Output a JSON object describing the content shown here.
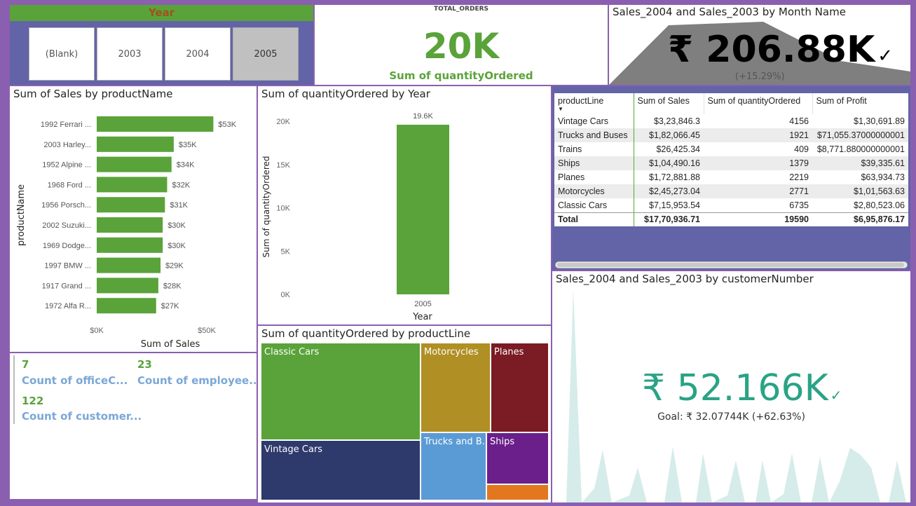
{
  "slicer": {
    "title": "Year",
    "options": [
      "(Blank)",
      "2003",
      "2004",
      "2005"
    ],
    "selected": "2005"
  },
  "total_orders": {
    "title": "TOTAL_ORDERS",
    "value": "20K",
    "label": "Sum of quantityOrdered"
  },
  "kpi_month": {
    "title": "Sales_2004 and Sales_2003 by Month Name",
    "value": "₹ 206.88K",
    "check": "✓",
    "change": "(+15.29%)"
  },
  "bar_product": {
    "title": "Sum of Sales by productName"
  },
  "counts": [
    {
      "value": "7",
      "label": "Count of officeC..."
    },
    {
      "value": "23",
      "label": "Count of employee..."
    },
    {
      "value": "122",
      "label": "Count of customer..."
    }
  ],
  "col_year": {
    "title": "Sum of quantityOrdered by Year"
  },
  "treemap": {
    "title": "Sum of quantityOrdered by productLine",
    "items": [
      {
        "label": "Classic Cars",
        "color": "#5aa33a"
      },
      {
        "label": "Vintage Cars",
        "color": "#2e3a6c"
      },
      {
        "label": "Motorcycles",
        "color": "#b08f24"
      },
      {
        "label": "Planes",
        "color": "#7b1b24"
      },
      {
        "label": "Trucks and B...",
        "color": "#5b9bd5"
      },
      {
        "label": "Ships",
        "color": "#6a1f8a"
      },
      {
        "label": "",
        "color": "#e3771f"
      }
    ]
  },
  "table": {
    "headers": [
      "productLine",
      "Sum of Sales",
      "Sum of quantityOrdered",
      "Sum of Profit"
    ],
    "rows": [
      [
        "Vintage Cars",
        "$3,23,846.3",
        "4156",
        "$1,30,691.89"
      ],
      [
        "Trucks and Buses",
        "$1,82,066.45",
        "1921",
        "$71,055.37000000001"
      ],
      [
        "Trains",
        "$26,425.34",
        "409",
        "$8,771.880000000001"
      ],
      [
        "Ships",
        "$1,04,490.16",
        "1379",
        "$39,335.61"
      ],
      [
        "Planes",
        "$1,72,881.88",
        "2219",
        "$63,934.73"
      ],
      [
        "Motorcycles",
        "$2,45,273.04",
        "2771",
        "$1,01,563.63"
      ],
      [
        "Classic Cars",
        "$7,15,953.54",
        "6735",
        "$2,80,523.06"
      ]
    ],
    "total": [
      "Total",
      "$17,70,936.71",
      "19590",
      "$6,95,876.17"
    ]
  },
  "kpi_customer": {
    "title": "Sales_2004 and Sales_2003 by customerNumber",
    "value": "₹ 52.166K",
    "check": "✓",
    "goal": "Goal: ₹ 32.07744K (+62.63%)",
    "accent": "#2aa385"
  },
  "chart_data": [
    {
      "type": "bar",
      "orientation": "horizontal",
      "title": "Sum of Sales by productName",
      "xlabel": "Sum of Sales",
      "ylabel": "productName",
      "categories": [
        "1992 Ferrari ...",
        "2003 Harley...",
        "1952 Alpine ...",
        "1968 Ford ...",
        "1956 Porsch...",
        "2002 Suzuki...",
        "1969 Dodge...",
        "1997 BMW ...",
        "1917 Grand ...",
        "1972 Alfa R..."
      ],
      "values": [
        53000,
        35000,
        34000,
        32000,
        31000,
        30000,
        30000,
        29000,
        28000,
        27000
      ],
      "data_labels": [
        "$53K",
        "$35K",
        "$34K",
        "$32K",
        "$31K",
        "$30K",
        "$30K",
        "$29K",
        "$28K",
        "$27K"
      ],
      "x_ticks": [
        "$0K",
        "$50K"
      ],
      "xlim": [
        0,
        60000
      ],
      "color": "#5aa33a"
    },
    {
      "type": "bar",
      "title": "Sum of quantityOrdered by Year",
      "xlabel": "Year",
      "ylabel": "Sum of quantityOrdered",
      "categories": [
        "2005"
      ],
      "values": [
        19600
      ],
      "data_labels": [
        "19.6K"
      ],
      "y_ticks": [
        "0K",
        "5K",
        "10K",
        "15K",
        "20K"
      ],
      "ylim": [
        0,
        20000
      ],
      "color": "#5aa33a"
    },
    {
      "type": "treemap",
      "title": "Sum of quantityOrdered by productLine",
      "categories": [
        "Classic Cars",
        "Vintage Cars",
        "Motorcycles",
        "Planes",
        "Trucks and Buses",
        "Ships",
        "Trains"
      ],
      "values": [
        6735,
        4156,
        2771,
        2219,
        1921,
        1379,
        409
      ]
    }
  ]
}
